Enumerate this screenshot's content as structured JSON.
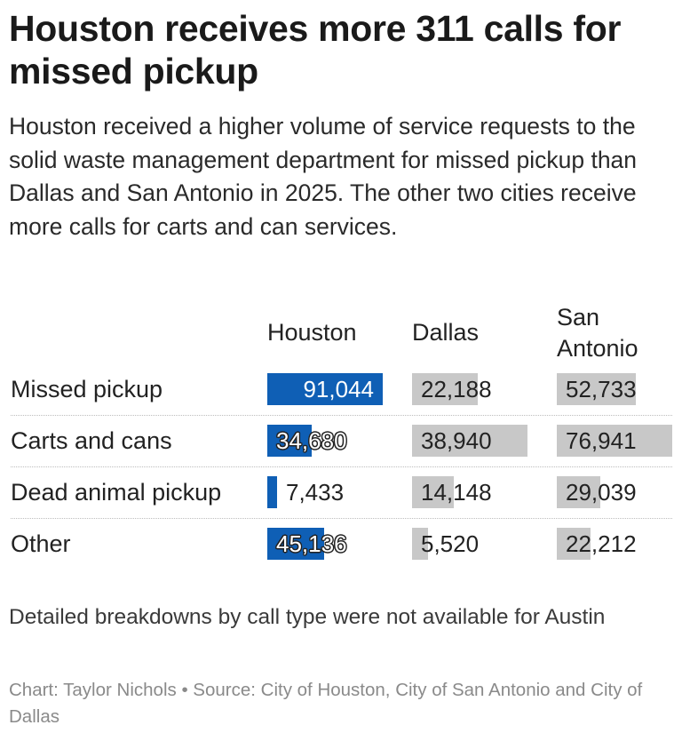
{
  "title": "Houston receives more 311 calls for missed pickup",
  "subtitle": "Houston received a higher volume of service requests to the solid waste management department for missed pickup than Dallas and San Antonio in 2025. The other two cities receive more calls for carts and can services.",
  "note": "Detailed breakdowns by call type were not available for Austin",
  "credits": "Chart: Taylor Nichols • Source: City of Houston, City of San Antonio and City of Dallas",
  "colors": {
    "houston": "#0f5fb5",
    "other_cities": "#c8c8c8"
  },
  "chart_data": {
    "type": "table",
    "columns": [
      "Houston",
      "Dallas",
      "San Antonio"
    ],
    "rows": [
      "Missed pickup",
      "Carts and cans",
      "Dead animal pickup",
      "Other"
    ],
    "values": {
      "Houston": [
        91044,
        34680,
        7433,
        45136
      ],
      "Dallas": [
        22188,
        38940,
        14148,
        5520
      ],
      "San Antonio": [
        52733,
        76941,
        29039,
        22212
      ]
    },
    "labels": {
      "Houston": [
        "91,044",
        "34,680",
        "7,433",
        "45,136"
      ],
      "Dallas": [
        "22,188",
        "38,940",
        "14,148",
        "5,520"
      ],
      "San Antonio": [
        "52,733",
        "76,941",
        "29,039",
        "22,212"
      ]
    }
  }
}
